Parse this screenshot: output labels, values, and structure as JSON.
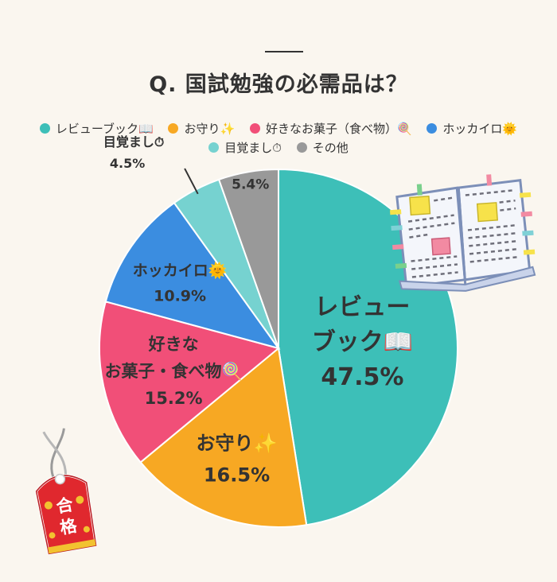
{
  "title": "Q. 国試勉強の必需品は？",
  "legend_rows": [
    [
      {
        "label": "レビューブック📖",
        "color": "#3dbfb8"
      },
      {
        "label": "お守り✨",
        "color": "#f7a823"
      },
      {
        "label": "好きなお菓子（食べ物）🍭",
        "color": "#f14f78"
      },
      {
        "label": "ホッカイロ🌞",
        "color": "#3b8de0"
      }
    ],
    [
      {
        "label": "目覚まし⏱",
        "color": "#76d2d0"
      },
      {
        "label": "その他",
        "color": "#999999"
      }
    ]
  ],
  "chart_data": {
    "type": "pie",
    "title": "Q. 国試勉強の必需品は？",
    "legend_position": "top",
    "slices": [
      {
        "label": "レビューブック📖",
        "value": 47.5,
        "value_text": "47.5%",
        "color": "#3dbfb8",
        "label_lines": [
          "レビュー",
          "ブック📖"
        ]
      },
      {
        "label": "お守り✨",
        "value": 16.5,
        "value_text": "16.5%",
        "color": "#f7a823",
        "label_lines": [
          "お守り✨"
        ]
      },
      {
        "label": "好きなお菓子（食べ物）🍭",
        "value": 15.2,
        "value_text": "15.2%",
        "color": "#f14f78",
        "label_lines": [
          "好きな",
          "お菓子・食べ物🍭"
        ]
      },
      {
        "label": "ホッカイロ🌞",
        "value": 10.9,
        "value_text": "10.9%",
        "color": "#3b8de0",
        "label_lines": [
          "ホッカイロ🌞"
        ]
      },
      {
        "label": "目覚まし⏱",
        "value": 4.5,
        "value_text": "4.5%",
        "color": "#76d2d0",
        "label_lines": [
          "目覚まし⏱"
        ]
      },
      {
        "label": "その他",
        "value": 5.4,
        "value_text": "5.4%",
        "color": "#999999",
        "label_lines": []
      }
    ]
  },
  "illustrations": {
    "book": "open-book-with-sticky-notes",
    "charm": "omamori-charm",
    "charm_text": "合格"
  },
  "colors": {
    "background": "#faf6ef",
    "charm_red": "#e0282e",
    "charm_gold": "#f2c230"
  }
}
